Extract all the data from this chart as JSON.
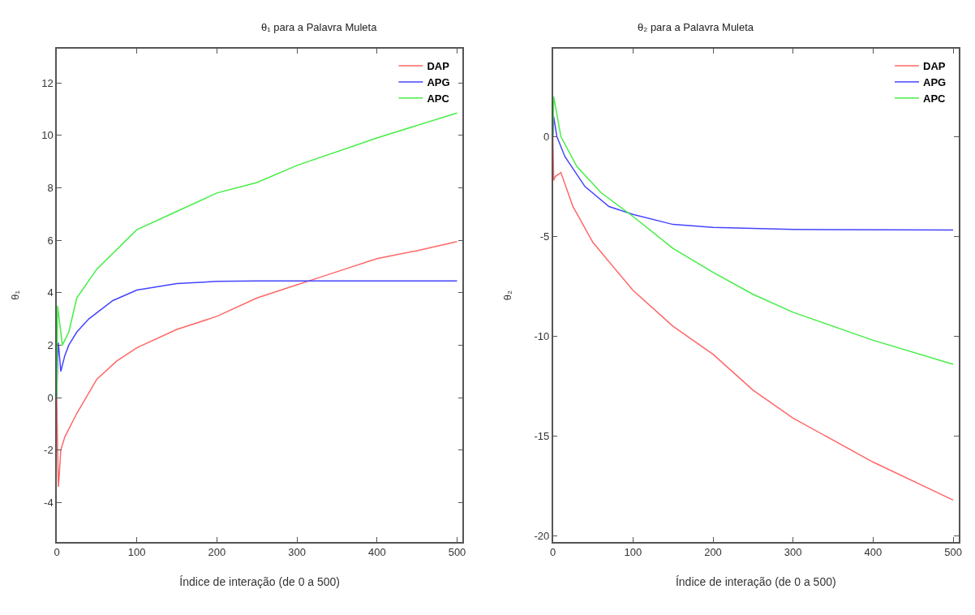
{
  "chart_data": [
    {
      "type": "line",
      "title": "θ₁ para a Palavra Muleta",
      "xlabel": "Índice de interação (de 0 a 500)",
      "ylabel": "θ₁",
      "xlim": [
        0,
        507
      ],
      "ylim": [
        -5.5,
        13.3
      ],
      "xticks": [
        0,
        100,
        200,
        300,
        400,
        500
      ],
      "yticks": [
        -4,
        -2,
        0,
        2,
        4,
        6,
        8,
        10,
        12
      ],
      "legend": "top right",
      "marker": "none",
      "line_style": "solid",
      "series": [
        {
          "name": "DAP",
          "color": "#ff6666",
          "x": [
            0,
            1,
            2,
            3,
            5,
            10,
            25,
            50,
            75,
            100,
            150,
            200,
            250,
            300,
            320,
            350,
            400,
            450,
            500
          ],
          "values": [
            0,
            -2.0,
            -3.4,
            -3.0,
            -2.0,
            -1.5,
            -0.6,
            0.7,
            1.4,
            1.9,
            2.6,
            3.1,
            3.8,
            4.3,
            4.5,
            4.8,
            5.3,
            5.6,
            5.95
          ]
        },
        {
          "name": "APG",
          "color": "#4444ff",
          "x": [
            0,
            1,
            2,
            5,
            10,
            15,
            25,
            40,
            70,
            100,
            150,
            200,
            250,
            300,
            400,
            500
          ],
          "values": [
            0,
            1.5,
            2.1,
            1.0,
            1.6,
            2.0,
            2.5,
            3.0,
            3.7,
            4.1,
            4.35,
            4.43,
            4.45,
            4.45,
            4.45,
            4.45
          ]
        },
        {
          "name": "APC",
          "color": "#44ee44",
          "x": [
            0,
            1,
            3,
            7,
            15,
            25,
            50,
            100,
            150,
            200,
            250,
            300,
            400,
            500
          ],
          "values": [
            0,
            3.5,
            3.0,
            2.0,
            2.5,
            3.8,
            4.9,
            6.4,
            7.1,
            7.8,
            8.2,
            8.85,
            9.9,
            10.85
          ]
        }
      ]
    },
    {
      "type": "line",
      "title": "θ₂ para a Palavra Muleta",
      "xlabel": "Índice de interação (de 0 a 500)",
      "ylabel": "θ₂",
      "xlim": [
        0,
        507
      ],
      "ylim": [
        -20.3,
        4.4
      ],
      "xticks": [
        0,
        100,
        200,
        300,
        400,
        500
      ],
      "yticks": [
        -20,
        -15,
        -10,
        -5,
        0
      ],
      "legend": "top right",
      "marker": "none",
      "line_style": "solid",
      "series": [
        {
          "name": "DAP",
          "color": "#ff6666",
          "x": [
            0,
            1,
            3,
            10,
            25,
            50,
            100,
            150,
            200,
            250,
            300,
            400,
            500
          ],
          "values": [
            0,
            -2.2,
            -2.0,
            -1.8,
            -3.5,
            -5.3,
            -7.7,
            -9.5,
            -10.9,
            -12.7,
            -14.1,
            -16.3,
            -18.2
          ]
        },
        {
          "name": "APG",
          "color": "#4444ff",
          "x": [
            0,
            1,
            5,
            15,
            40,
            70,
            100,
            150,
            200,
            300,
            500
          ],
          "values": [
            0,
            1.0,
            0,
            -1.0,
            -2.5,
            -3.5,
            -3.9,
            -4.4,
            -4.55,
            -4.65,
            -4.68
          ]
        },
        {
          "name": "APC",
          "color": "#44ee44",
          "x": [
            0,
            1,
            10,
            30,
            60,
            100,
            150,
            200,
            250,
            300,
            400,
            500
          ],
          "values": [
            0,
            2.0,
            0,
            -1.5,
            -2.8,
            -4.0,
            -5.6,
            -6.8,
            -7.9,
            -8.8,
            -10.2,
            -11.4
          ]
        }
      ]
    }
  ]
}
